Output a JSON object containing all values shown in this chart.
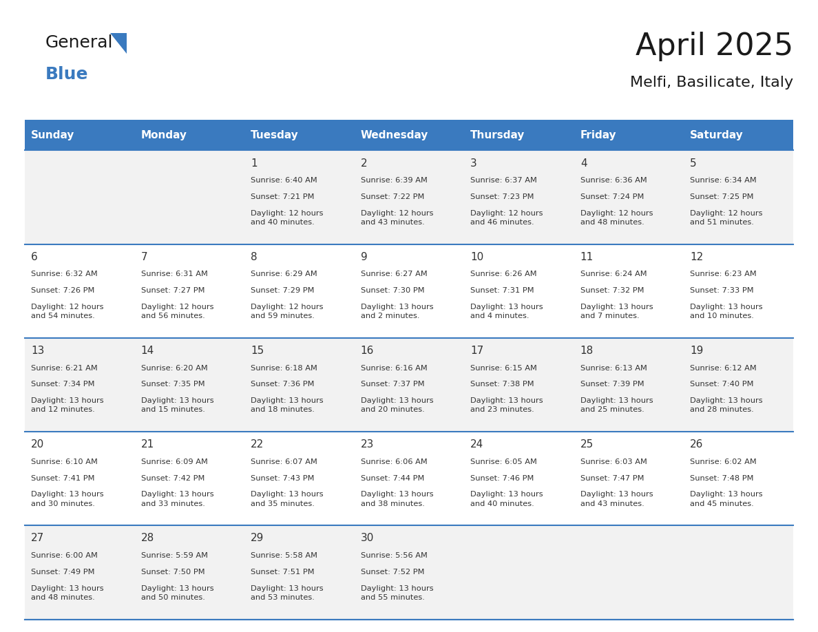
{
  "title": "April 2025",
  "subtitle": "Melfi, Basilicate, Italy",
  "days_of_week": [
    "Sunday",
    "Monday",
    "Tuesday",
    "Wednesday",
    "Thursday",
    "Friday",
    "Saturday"
  ],
  "header_bg": "#3a7abf",
  "header_text": "#ffffff",
  "row_bg_odd": "#f2f2f2",
  "row_bg_even": "#ffffff",
  "border_color": "#3a7abf",
  "day_text_color": "#333333",
  "info_text_color": "#333333",
  "calendar_data": [
    [
      {
        "day": "",
        "sunrise": "",
        "sunset": "",
        "daylight": ""
      },
      {
        "day": "",
        "sunrise": "",
        "sunset": "",
        "daylight": ""
      },
      {
        "day": "1",
        "sunrise": "Sunrise: 6:40 AM",
        "sunset": "Sunset: 7:21 PM",
        "daylight": "Daylight: 12 hours\nand 40 minutes."
      },
      {
        "day": "2",
        "sunrise": "Sunrise: 6:39 AM",
        "sunset": "Sunset: 7:22 PM",
        "daylight": "Daylight: 12 hours\nand 43 minutes."
      },
      {
        "day": "3",
        "sunrise": "Sunrise: 6:37 AM",
        "sunset": "Sunset: 7:23 PM",
        "daylight": "Daylight: 12 hours\nand 46 minutes."
      },
      {
        "day": "4",
        "sunrise": "Sunrise: 6:36 AM",
        "sunset": "Sunset: 7:24 PM",
        "daylight": "Daylight: 12 hours\nand 48 minutes."
      },
      {
        "day": "5",
        "sunrise": "Sunrise: 6:34 AM",
        "sunset": "Sunset: 7:25 PM",
        "daylight": "Daylight: 12 hours\nand 51 minutes."
      }
    ],
    [
      {
        "day": "6",
        "sunrise": "Sunrise: 6:32 AM",
        "sunset": "Sunset: 7:26 PM",
        "daylight": "Daylight: 12 hours\nand 54 minutes."
      },
      {
        "day": "7",
        "sunrise": "Sunrise: 6:31 AM",
        "sunset": "Sunset: 7:27 PM",
        "daylight": "Daylight: 12 hours\nand 56 minutes."
      },
      {
        "day": "8",
        "sunrise": "Sunrise: 6:29 AM",
        "sunset": "Sunset: 7:29 PM",
        "daylight": "Daylight: 12 hours\nand 59 minutes."
      },
      {
        "day": "9",
        "sunrise": "Sunrise: 6:27 AM",
        "sunset": "Sunset: 7:30 PM",
        "daylight": "Daylight: 13 hours\nand 2 minutes."
      },
      {
        "day": "10",
        "sunrise": "Sunrise: 6:26 AM",
        "sunset": "Sunset: 7:31 PM",
        "daylight": "Daylight: 13 hours\nand 4 minutes."
      },
      {
        "day": "11",
        "sunrise": "Sunrise: 6:24 AM",
        "sunset": "Sunset: 7:32 PM",
        "daylight": "Daylight: 13 hours\nand 7 minutes."
      },
      {
        "day": "12",
        "sunrise": "Sunrise: 6:23 AM",
        "sunset": "Sunset: 7:33 PM",
        "daylight": "Daylight: 13 hours\nand 10 minutes."
      }
    ],
    [
      {
        "day": "13",
        "sunrise": "Sunrise: 6:21 AM",
        "sunset": "Sunset: 7:34 PM",
        "daylight": "Daylight: 13 hours\nand 12 minutes."
      },
      {
        "day": "14",
        "sunrise": "Sunrise: 6:20 AM",
        "sunset": "Sunset: 7:35 PM",
        "daylight": "Daylight: 13 hours\nand 15 minutes."
      },
      {
        "day": "15",
        "sunrise": "Sunrise: 6:18 AM",
        "sunset": "Sunset: 7:36 PM",
        "daylight": "Daylight: 13 hours\nand 18 minutes."
      },
      {
        "day": "16",
        "sunrise": "Sunrise: 6:16 AM",
        "sunset": "Sunset: 7:37 PM",
        "daylight": "Daylight: 13 hours\nand 20 minutes."
      },
      {
        "day": "17",
        "sunrise": "Sunrise: 6:15 AM",
        "sunset": "Sunset: 7:38 PM",
        "daylight": "Daylight: 13 hours\nand 23 minutes."
      },
      {
        "day": "18",
        "sunrise": "Sunrise: 6:13 AM",
        "sunset": "Sunset: 7:39 PM",
        "daylight": "Daylight: 13 hours\nand 25 minutes."
      },
      {
        "day": "19",
        "sunrise": "Sunrise: 6:12 AM",
        "sunset": "Sunset: 7:40 PM",
        "daylight": "Daylight: 13 hours\nand 28 minutes."
      }
    ],
    [
      {
        "day": "20",
        "sunrise": "Sunrise: 6:10 AM",
        "sunset": "Sunset: 7:41 PM",
        "daylight": "Daylight: 13 hours\nand 30 minutes."
      },
      {
        "day": "21",
        "sunrise": "Sunrise: 6:09 AM",
        "sunset": "Sunset: 7:42 PM",
        "daylight": "Daylight: 13 hours\nand 33 minutes."
      },
      {
        "day": "22",
        "sunrise": "Sunrise: 6:07 AM",
        "sunset": "Sunset: 7:43 PM",
        "daylight": "Daylight: 13 hours\nand 35 minutes."
      },
      {
        "day": "23",
        "sunrise": "Sunrise: 6:06 AM",
        "sunset": "Sunset: 7:44 PM",
        "daylight": "Daylight: 13 hours\nand 38 minutes."
      },
      {
        "day": "24",
        "sunrise": "Sunrise: 6:05 AM",
        "sunset": "Sunset: 7:46 PM",
        "daylight": "Daylight: 13 hours\nand 40 minutes."
      },
      {
        "day": "25",
        "sunrise": "Sunrise: 6:03 AM",
        "sunset": "Sunset: 7:47 PM",
        "daylight": "Daylight: 13 hours\nand 43 minutes."
      },
      {
        "day": "26",
        "sunrise": "Sunrise: 6:02 AM",
        "sunset": "Sunset: 7:48 PM",
        "daylight": "Daylight: 13 hours\nand 45 minutes."
      }
    ],
    [
      {
        "day": "27",
        "sunrise": "Sunrise: 6:00 AM",
        "sunset": "Sunset: 7:49 PM",
        "daylight": "Daylight: 13 hours\nand 48 minutes."
      },
      {
        "day": "28",
        "sunrise": "Sunrise: 5:59 AM",
        "sunset": "Sunset: 7:50 PM",
        "daylight": "Daylight: 13 hours\nand 50 minutes."
      },
      {
        "day": "29",
        "sunrise": "Sunrise: 5:58 AM",
        "sunset": "Sunset: 7:51 PM",
        "daylight": "Daylight: 13 hours\nand 53 minutes."
      },
      {
        "day": "30",
        "sunrise": "Sunrise: 5:56 AM",
        "sunset": "Sunset: 7:52 PM",
        "daylight": "Daylight: 13 hours\nand 55 minutes."
      },
      {
        "day": "",
        "sunrise": "",
        "sunset": "",
        "daylight": ""
      },
      {
        "day": "",
        "sunrise": "",
        "sunset": "",
        "daylight": ""
      },
      {
        "day": "",
        "sunrise": "",
        "sunset": "",
        "daylight": ""
      }
    ]
  ]
}
